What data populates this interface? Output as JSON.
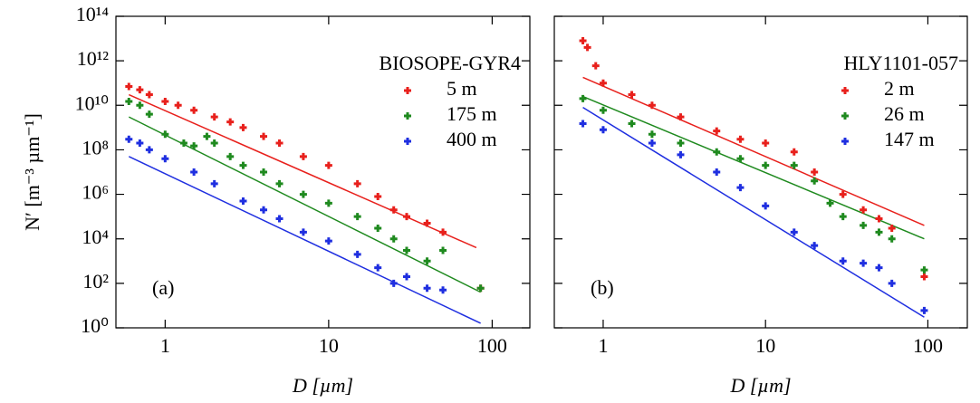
{
  "chart_data": [
    {
      "type": "scatter",
      "panel_label": "(a)",
      "legend_title": "BIOSOPE-GYR4",
      "xlabel": "D  [µm]",
      "ylabel": "N′  [m⁻³ µm⁻¹]",
      "log_x": true,
      "log_y": true,
      "xlim": [
        0.5,
        170
      ],
      "ylim": [
        1,
        100000000000000.0
      ],
      "xticks": [
        1,
        10,
        100
      ],
      "yticks": [
        {
          "value": 1,
          "label": "10⁰"
        },
        {
          "value": 100,
          "label": "10²"
        },
        {
          "value": 10000,
          "label": "10⁴"
        },
        {
          "value": 1000000,
          "label": "10⁶"
        },
        {
          "value": 100000000,
          "label": "10⁸"
        },
        {
          "value": 10000000000,
          "label": "10¹⁰"
        },
        {
          "value": 1000000000000,
          "label": "10¹²"
        },
        {
          "value": 100000000000000,
          "label": "10¹⁴"
        }
      ],
      "series": [
        {
          "name": "5 m",
          "color": "#e8201c",
          "x": [
            0.6,
            0.7,
            0.8,
            1,
            1.2,
            1.5,
            2,
            2.5,
            3,
            4,
            5,
            7,
            10,
            15,
            20,
            25,
            30,
            40,
            50,
            85
          ],
          "values": [
            70000000000.0,
            50000000000.0,
            30000000000.0,
            15000000000.0,
            10000000000.0,
            6000000000.0,
            3000000000.0,
            1800000000.0,
            1000000000.0,
            400000000.0,
            200000000.0,
            50000000.0,
            20000000.0,
            3000000.0,
            800000.0,
            200000.0,
            100000.0,
            50000.0,
            20000.0,
            60
          ]
        },
        {
          "name": "175 m",
          "color": "#1f8a1f",
          "x": [
            0.6,
            0.7,
            0.8,
            1,
            1.3,
            1.5,
            1.8,
            2,
            2.5,
            3,
            4,
            5,
            7,
            10,
            15,
            20,
            25,
            30,
            40,
            50,
            85
          ],
          "values": [
            15000000000.0,
            10000000000.0,
            4000000000.0,
            500000000.0,
            200000000.0,
            150000000.0,
            400000000.0,
            200000000.0,
            50000000.0,
            20000000.0,
            10000000.0,
            3000000.0,
            1000000.0,
            400000.0,
            100000.0,
            30000.0,
            10000.0,
            3000.0,
            1000.0,
            3000.0,
            60
          ]
        },
        {
          "name": "400 m",
          "color": "#1f2fe0",
          "x": [
            0.6,
            0.7,
            0.8,
            1,
            1.5,
            2,
            3,
            4,
            5,
            7,
            10,
            15,
            20,
            25,
            30,
            40,
            50
          ],
          "values": [
            300000000.0,
            200000000.0,
            100000000.0,
            40000000.0,
            10000000.0,
            3000000.0,
            500000.0,
            200000.0,
            80000.0,
            20000.0,
            8000.0,
            2000.0,
            500,
            100,
            200,
            60,
            50
          ]
        }
      ],
      "lines": [
        {
          "color": "#e8201c",
          "x": [
            0.6,
            80
          ],
          "values": [
            30000000000.0,
            4000.0
          ]
        },
        {
          "color": "#1f8a1f",
          "x": [
            0.6,
            85
          ],
          "values": [
            3000000000.0,
            40
          ]
        },
        {
          "color": "#1f2fe0",
          "x": [
            0.6,
            85
          ],
          "values": [
            50000000.0,
            1.6
          ]
        }
      ]
    },
    {
      "type": "scatter",
      "panel_label": "(b)",
      "legend_title": "HLY1101-057",
      "xlabel": "D  [µm]",
      "log_x": true,
      "log_y": true,
      "xlim": [
        0.5,
        175
      ],
      "ylim": [
        1,
        100000000000000.0
      ],
      "xticks": [
        1,
        10,
        100
      ],
      "series": [
        {
          "name": "2 m",
          "color": "#e8201c",
          "x": [
            0.75,
            0.8,
            0.9,
            1,
            1.5,
            2,
            3,
            5,
            7,
            10,
            15,
            20,
            30,
            40,
            50,
            60,
            95
          ],
          "values": [
            8000000000000.0,
            4000000000000.0,
            600000000000.0,
            100000000000.0,
            30000000000.0,
            10000000000.0,
            3000000000.0,
            700000000.0,
            300000000.0,
            200000000.0,
            80000000.0,
            10000000.0,
            1000000.0,
            200000.0,
            80000.0,
            30000.0,
            200
          ]
        },
        {
          "name": "26 m",
          "color": "#1f8a1f",
          "x": [
            0.75,
            1,
            1.5,
            2,
            3,
            5,
            7,
            10,
            15,
            20,
            25,
            30,
            40,
            50,
            60,
            95
          ],
          "values": [
            20000000000.0,
            6000000000.0,
            1500000000.0,
            500000000.0,
            200000000.0,
            80000000.0,
            40000000.0,
            20000000.0,
            20000000.0,
            4000000.0,
            400000.0,
            100000.0,
            40000.0,
            20000.0,
            10000.0,
            400
          ]
        },
        {
          "name": "147 m",
          "color": "#1f2fe0",
          "x": [
            0.75,
            1,
            2,
            3,
            5,
            7,
            10,
            15,
            20,
            30,
            40,
            50,
            60,
            95
          ],
          "values": [
            1500000000.0,
            800000000.0,
            200000000.0,
            60000000.0,
            10000000.0,
            2000000.0,
            300000.0,
            20000.0,
            5000.0,
            1000.0,
            800,
            500,
            100,
            6
          ]
        }
      ],
      "lines": [
        {
          "color": "#e8201c",
          "x": [
            0.75,
            95
          ],
          "values": [
            180000000000.0,
            40000.0
          ]
        },
        {
          "color": "#1f8a1f",
          "x": [
            0.75,
            95
          ],
          "values": [
            25000000000.0,
            10000.0
          ]
        },
        {
          "color": "#1f2fe0",
          "x": [
            0.75,
            95
          ],
          "values": [
            8000000000.0,
            3
          ]
        }
      ]
    }
  ]
}
